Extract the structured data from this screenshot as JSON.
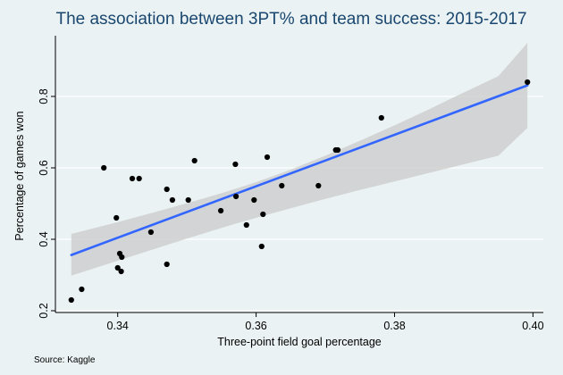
{
  "chart_data": {
    "type": "scatter",
    "title": "The association between 3PT% and team success: 2015-2017",
    "xlabel": "Three-point field goal percentage",
    "ylabel": "Percentage of games won",
    "note": "Source: Kaggle",
    "xlim": [
      0.331,
      0.4015
    ],
    "ylim": [
      0.195,
      0.97
    ],
    "xticks": [
      0.34,
      0.36,
      0.38,
      0.4
    ],
    "xtick_labels": [
      "0.34",
      "0.36",
      "0.38",
      "0.40"
    ],
    "yticks": [
      0.2,
      0.4,
      0.6,
      0.8
    ],
    "ytick_labels": [
      "0.2",
      "0.4",
      "0.6",
      "0.8"
    ],
    "grid": true,
    "points": [
      {
        "x": 0.3333,
        "y": 0.23
      },
      {
        "x": 0.3348,
        "y": 0.26
      },
      {
        "x": 0.338,
        "y": 0.6
      },
      {
        "x": 0.3398,
        "y": 0.46
      },
      {
        "x": 0.34,
        "y": 0.32
      },
      {
        "x": 0.3403,
        "y": 0.36
      },
      {
        "x": 0.3405,
        "y": 0.31
      },
      {
        "x": 0.3406,
        "y": 0.35
      },
      {
        "x": 0.3421,
        "y": 0.57
      },
      {
        "x": 0.3431,
        "y": 0.57
      },
      {
        "x": 0.3448,
        "y": 0.42
      },
      {
        "x": 0.3471,
        "y": 0.54
      },
      {
        "x": 0.3471,
        "y": 0.33
      },
      {
        "x": 0.3479,
        "y": 0.51
      },
      {
        "x": 0.3502,
        "y": 0.51
      },
      {
        "x": 0.3511,
        "y": 0.62
      },
      {
        "x": 0.3549,
        "y": 0.48
      },
      {
        "x": 0.357,
        "y": 0.61
      },
      {
        "x": 0.3571,
        "y": 0.52
      },
      {
        "x": 0.3586,
        "y": 0.44
      },
      {
        "x": 0.3597,
        "y": 0.51
      },
      {
        "x": 0.3608,
        "y": 0.38
      },
      {
        "x": 0.361,
        "y": 0.47
      },
      {
        "x": 0.3616,
        "y": 0.63
      },
      {
        "x": 0.3637,
        "y": 0.55
      },
      {
        "x": 0.369,
        "y": 0.55
      },
      {
        "x": 0.3715,
        "y": 0.65
      },
      {
        "x": 0.3718,
        "y": 0.65
      },
      {
        "x": 0.3781,
        "y": 0.74
      },
      {
        "x": 0.3992,
        "y": 0.84
      }
    ],
    "fit_line": {
      "x": [
        0.3333,
        0.3992
      ],
      "y": [
        0.356,
        0.831
      ]
    },
    "confidence_band": {
      "x": [
        0.3333,
        0.34,
        0.345,
        0.35,
        0.355,
        0.36,
        0.365,
        0.37,
        0.375,
        0.38,
        0.385,
        0.39,
        0.395,
        0.3992
      ],
      "upper": [
        0.415,
        0.448,
        0.474,
        0.501,
        0.529,
        0.56,
        0.595,
        0.634,
        0.676,
        0.719,
        0.764,
        0.811,
        0.857,
        0.95
      ],
      "lower": [
        0.298,
        0.34,
        0.371,
        0.402,
        0.432,
        0.46,
        0.487,
        0.513,
        0.538,
        0.562,
        0.586,
        0.61,
        0.634,
        0.712
      ]
    },
    "colors": {
      "background": "#eaf2f3",
      "title": "#1a476f",
      "fit_line": "#3366ff",
      "band": "#cfcfcf",
      "points": "#000000",
      "grid": "#ffffff"
    }
  }
}
